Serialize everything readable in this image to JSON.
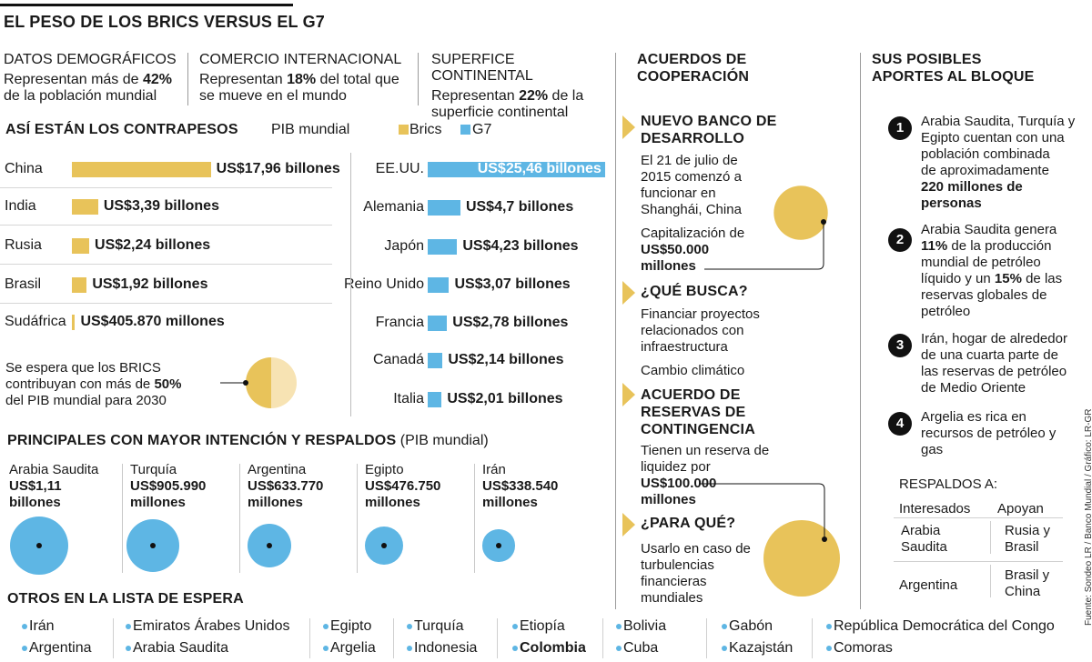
{
  "title": "EL PESO DE LOS BRICS VERSUS EL G7",
  "colors": {
    "brics": "#E8C35A",
    "g7": "#5EB6E4",
    "brics_light": "#F7E3B3",
    "text": "#1a1a1a"
  },
  "stats": [
    {
      "heading": "DATOS DEMOGRÁFICOS",
      "pre": "Representan más de ",
      "bold": "42%",
      "post": "de la población mundial"
    },
    {
      "heading": "COMERCIO INTERNACIONAL",
      "pre": "Representan ",
      "bold": "18%",
      "post_a": " del total que",
      "post": "se mueve en el mundo"
    },
    {
      "heading": "SUPERFICE CONTINENTAL",
      "pre": "Representan ",
      "bold": "22%",
      "post_a": " de la",
      "post": "superficie continental"
    }
  ],
  "contrapesos": {
    "heading": "ASÍ ESTÁN LOS CONTRAPESOS",
    "subtitle": "PIB mundial",
    "legend_brics": "Brics",
    "legend_g7": "G7"
  },
  "projection": {
    "line1": "Se espera que los BRICS",
    "line2_pre": "contribuyan con más de ",
    "line2_bold": "50%",
    "line3": "del PIB mundial para 2030",
    "share": 50
  },
  "chart_data": [
    {
      "type": "bar",
      "title": "Así están los contrapesos - PIB mundial (BRICS)",
      "series_name": "Brics",
      "categories": [
        "China",
        "India",
        "Rusia",
        "Brasil",
        "Sudáfrica"
      ],
      "values": [
        17.96,
        3.39,
        2.24,
        1.92,
        0.40587
      ],
      "labels": [
        "US$17,96 billones",
        "US$3,39 billones",
        "US$2,24 billones",
        "US$1,92 billones",
        "US$405.870 millones"
      ],
      "unit": "billones de US$"
    },
    {
      "type": "bar",
      "title": "Así están los contrapesos - PIB mundial (G7)",
      "series_name": "G7",
      "categories": [
        "EE.UU.",
        "Alemania",
        "Japón",
        "Reino Unido",
        "Francia",
        "Canadá",
        "Italia"
      ],
      "values": [
        25.46,
        4.7,
        4.23,
        3.07,
        2.78,
        2.14,
        2.01
      ],
      "labels": [
        "US$25,46 billones",
        "US$4,7 billones",
        "US$4,23 billones",
        "US$3,07 billones",
        "US$2,78 billones",
        "US$2,14 billones",
        "US$2,01 billones"
      ],
      "unit": "billones de US$"
    }
  ],
  "candidates": {
    "heading": "PRINCIPALES CON MAYOR INTENCIÓN Y RESPALDOS",
    "heading_note": " (PIB mundial)",
    "items": [
      {
        "country": "Arabia Saudita",
        "line1": "US$1,11",
        "line2": "billones",
        "value": 1110
      },
      {
        "country": "Turquía",
        "line1": "US$905.990",
        "line2": "millones",
        "value": 905.99
      },
      {
        "country": "Argentina",
        "line1": "US$633.770",
        "line2": "millones",
        "value": 633.77
      },
      {
        "country": "Egipto",
        "line1": "US$476.750",
        "line2": "millones",
        "value": 476.75
      },
      {
        "country": "Irán",
        "line1": "US$338.540",
        "line2": "millones",
        "value": 338.54
      }
    ]
  },
  "waitlist": {
    "heading": "OTROS EN LA LISTA DE ESPERA",
    "row1": [
      "Irán",
      "Emiratos Árabes Unidos",
      "Egipto",
      "Turquía",
      "Etiopía",
      "Bolivia",
      "Gabón",
      "República Democrática del Congo"
    ],
    "row2": [
      "Argentina",
      "Arabia Saudita",
      "Argelia",
      "Indonesia",
      "Colombia",
      "Cuba",
      "Kazajstán",
      "Comoras"
    ]
  },
  "acuerdos": {
    "heading1": "ACUERDOS DE",
    "heading2": "COOPERACIÓN",
    "nbd_h1": "NUEVO BANCO DE",
    "nbd_h2": "DESARROLLO",
    "nbd_l1": "El 21 de julio de",
    "nbd_l2": "2015 comenzó a",
    "nbd_l3": "funcionar en",
    "nbd_l4": "Shanghái, China",
    "cap_l1": "Capitalización de",
    "cap_l2": "US$50.000",
    "cap_l3": "millones",
    "busca_h": "¿QUÉ BUSCA?",
    "busca_l1": "Financiar proyectos",
    "busca_l2": "relacionados con",
    "busca_l3": "infraestructura",
    "busca_l4": "Cambio climático",
    "arc_h1": "ACUERDO DE",
    "arc_h2": "RESERVAS DE",
    "arc_h3": "CONTINGENCIA",
    "arc_l1": "Tienen un reserva de",
    "arc_l2": "liquidez por",
    "arc_l3": "US$100.000",
    "arc_l4": "millones",
    "para_h": "¿PARA QUÉ?",
    "para_l1": "Usarlo en caso de",
    "para_l2": "turbulencias",
    "para_l3": "financieras",
    "para_l4": "mundiales",
    "nbd_capital": 50000,
    "arc_capital": 100000
  },
  "aportes": {
    "heading1": "SUS POSIBLES",
    "heading2": "APORTES AL BLOQUE",
    "items": [
      {
        "n": "1",
        "l1": "Arabia Saudita, Turquía y",
        "l2": "Egipto cuentan con una",
        "l3": "población combinada",
        "l4": "de aproximadamente",
        "l5": "220 millones de",
        "l6": "personas"
      },
      {
        "n": "2",
        "l1": "Arabia Saudita genera",
        "l2b": "11%",
        "l2": " de la producción",
        "l3": "mundial de petróleo",
        "l4a": "líquido y un ",
        "l4b": "15%",
        "l4c": " de las",
        "l5": "reservas globales de",
        "l6": "petróleo"
      },
      {
        "n": "3",
        "l1": "Irán, hogar de alrededor",
        "l2": "de una cuarta parte de",
        "l3": "las reservas de petróleo",
        "l4": "de Medio Oriente"
      },
      {
        "n": "4",
        "l1": "Argelia es rica en",
        "l2": "recursos de petróleo y",
        "l3": "gas"
      }
    ]
  },
  "respaldos": {
    "heading": "RESPALDOS A:",
    "col1": "Interesados",
    "col2": "Apoyan",
    "r1a1": "Arabia",
    "r1a2": "Saudita",
    "r1b1": "Rusia y",
    "r1b2": "Brasil",
    "r2a": "Argentina",
    "r2b1": "Brasil y",
    "r2b2": "China"
  },
  "source": "Fuente: Sondeo LR / Banco Mundial / Gráfico: LR-GR"
}
